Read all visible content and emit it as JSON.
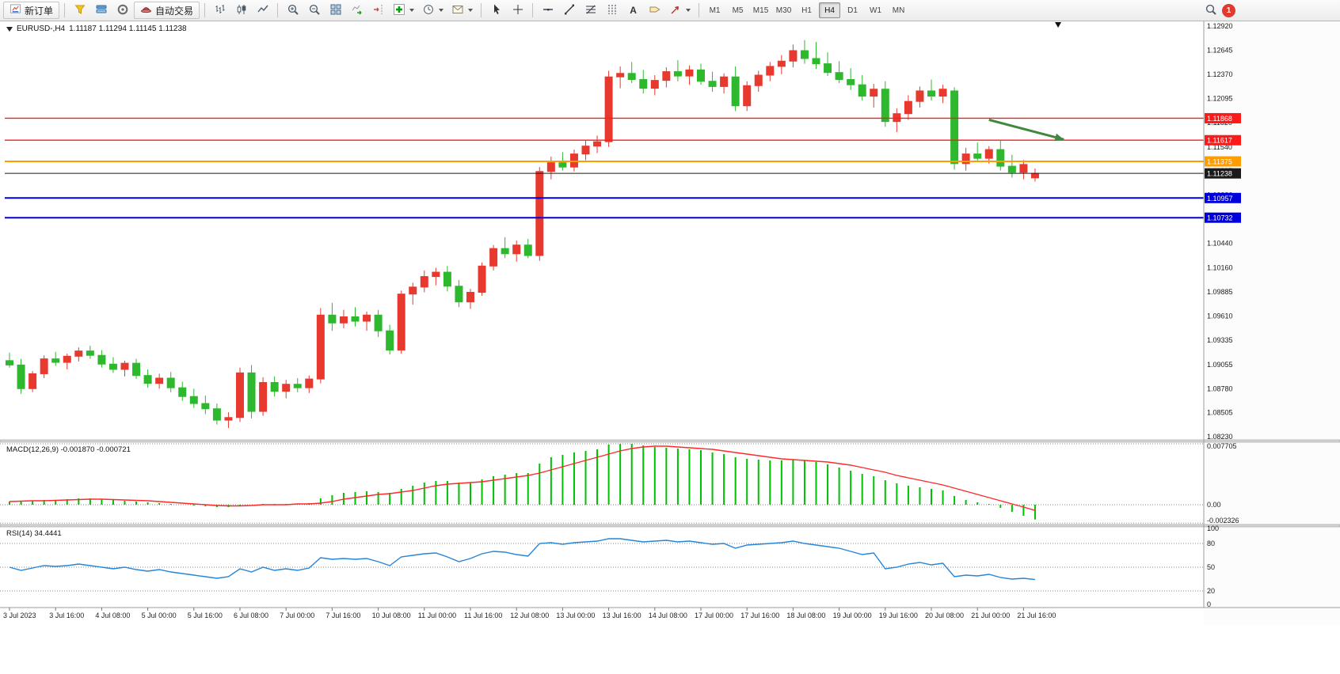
{
  "toolbar": {
    "new_order_label": "新订单",
    "auto_trading_label": "自动交易",
    "text_tool_glyph": "A",
    "timeframes": [
      "M1",
      "M5",
      "M15",
      "M30",
      "H1",
      "H4",
      "D1",
      "W1",
      "MN"
    ],
    "active_timeframe": "H4",
    "notification_count": "1"
  },
  "chart": {
    "symbol_label": "EURUSD-,H4",
    "ohlc_label": "1.11187 1.11294 1.11145 1.11238",
    "macd_label": "MACD(12,26,9) -0.001870 -0.000721",
    "rsi_label": "RSI(14) 34.4441"
  },
  "chart_data": {
    "type": "candlestick",
    "symbol": "EURUSD",
    "timeframe": "H4",
    "colors": {
      "bull": "#e8392f",
      "bear": "#2eb82e",
      "macd_hist": "#00c000",
      "macd_signal": "#ff2a2a",
      "rsi_line": "#2585d8",
      "axis_text": "#1a1a1a"
    },
    "candles": [
      [
        1.091,
        1.0919,
        1.0902,
        1.0905
      ],
      [
        1.0905,
        1.0912,
        1.0872,
        1.0878
      ],
      [
        1.0878,
        1.0898,
        1.0874,
        1.0895
      ],
      [
        1.0895,
        1.0916,
        1.089,
        1.0912
      ],
      [
        1.0912,
        1.092,
        1.0904,
        1.0908
      ],
      [
        1.0908,
        1.0918,
        1.09,
        1.0915
      ],
      [
        1.0915,
        1.0925,
        1.0909,
        1.0921
      ],
      [
        1.0921,
        1.0927,
        1.0912,
        1.0916
      ],
      [
        1.0916,
        1.0922,
        1.0902,
        1.0906
      ],
      [
        1.0906,
        1.0914,
        1.0896,
        1.09
      ],
      [
        1.09,
        1.091,
        1.0892,
        1.0907
      ],
      [
        1.0907,
        1.0912,
        1.0889,
        1.0893
      ],
      [
        1.0893,
        1.09,
        1.0879,
        1.0884
      ],
      [
        1.0884,
        1.0895,
        1.0878,
        1.089
      ],
      [
        1.089,
        1.0897,
        1.0874,
        1.0879
      ],
      [
        1.0879,
        1.0886,
        1.0864,
        1.0869
      ],
      [
        1.0869,
        1.0878,
        1.0856,
        1.0861
      ],
      [
        1.0861,
        1.087,
        1.0849,
        1.0855
      ],
      [
        1.0855,
        1.0861,
        1.0837,
        1.0842
      ],
      [
        1.0842,
        1.0851,
        1.0833,
        1.0845
      ],
      [
        1.0845,
        1.0902,
        1.084,
        1.0896
      ],
      [
        1.0896,
        1.0905,
        1.0844,
        1.0852
      ],
      [
        1.0852,
        1.0891,
        1.0847,
        1.0885
      ],
      [
        1.0885,
        1.0892,
        1.0869,
        1.0875
      ],
      [
        1.0875,
        1.0888,
        1.0867,
        1.0883
      ],
      [
        1.0883,
        1.089,
        1.0874,
        1.0879
      ],
      [
        1.0879,
        1.0893,
        1.0873,
        1.0889
      ],
      [
        1.0889,
        1.097,
        1.0884,
        1.0962
      ],
      [
        1.0962,
        1.0976,
        1.0944,
        1.0953
      ],
      [
        1.0953,
        1.0968,
        1.0947,
        1.096
      ],
      [
        1.096,
        1.0971,
        1.0949,
        1.0955
      ],
      [
        1.0955,
        1.0966,
        1.0944,
        1.0962
      ],
      [
        1.0962,
        1.0968,
        1.0937,
        1.0944
      ],
      [
        1.0944,
        1.0951,
        1.0917,
        1.0922
      ],
      [
        1.0922,
        1.099,
        1.0918,
        1.0986
      ],
      [
        1.0986,
        1.0999,
        1.0974,
        1.0994
      ],
      [
        1.0994,
        1.1013,
        1.0988,
        1.1006
      ],
      [
        1.1006,
        1.1016,
        1.0996,
        1.1011
      ],
      [
        1.1011,
        1.1018,
        1.0989,
        1.0995
      ],
      [
        1.0995,
        1.1002,
        1.0971,
        1.0977
      ],
      [
        1.0977,
        1.0992,
        1.0969,
        1.0988
      ],
      [
        1.0988,
        1.1022,
        1.0984,
        1.1018
      ],
      [
        1.1018,
        1.1042,
        1.1013,
        1.1038
      ],
      [
        1.1038,
        1.1051,
        1.1027,
        1.1032
      ],
      [
        1.1032,
        1.1047,
        1.1023,
        1.1042
      ],
      [
        1.1042,
        1.1049,
        1.1027,
        1.103
      ],
      [
        1.103,
        1.1131,
        1.1024,
        1.1126
      ],
      [
        1.1126,
        1.1143,
        1.1117,
        1.1136
      ],
      [
        1.1136,
        1.1148,
        1.1127,
        1.1131
      ],
      [
        1.1131,
        1.1151,
        1.1126,
        1.1146
      ],
      [
        1.1146,
        1.1161,
        1.1139,
        1.1155
      ],
      [
        1.1155,
        1.1167,
        1.1147,
        1.116
      ],
      [
        1.116,
        1.1241,
        1.1154,
        1.1234
      ],
      [
        1.1234,
        1.1246,
        1.1221,
        1.1238
      ],
      [
        1.1238,
        1.1251,
        1.1227,
        1.1231
      ],
      [
        1.1231,
        1.1242,
        1.1215,
        1.1221
      ],
      [
        1.1221,
        1.1236,
        1.1213,
        1.123
      ],
      [
        1.123,
        1.1245,
        1.1222,
        1.124
      ],
      [
        1.124,
        1.1253,
        1.1229,
        1.1235
      ],
      [
        1.1235,
        1.1247,
        1.1225,
        1.1242
      ],
      [
        1.1242,
        1.1249,
        1.1225,
        1.1229
      ],
      [
        1.1229,
        1.124,
        1.1217,
        1.1223
      ],
      [
        1.1223,
        1.1238,
        1.1215,
        1.1234
      ],
      [
        1.1234,
        1.1246,
        1.1195,
        1.1201
      ],
      [
        1.1201,
        1.1229,
        1.1195,
        1.1224
      ],
      [
        1.1224,
        1.1241,
        1.1217,
        1.1236
      ],
      [
        1.1236,
        1.1251,
        1.1229,
        1.1246
      ],
      [
        1.1246,
        1.1259,
        1.1237,
        1.1252
      ],
      [
        1.1252,
        1.1271,
        1.1245,
        1.1264
      ],
      [
        1.1264,
        1.1276,
        1.1249,
        1.1255
      ],
      [
        1.1255,
        1.1274,
        1.1243,
        1.1249
      ],
      [
        1.1249,
        1.1262,
        1.1235,
        1.1239
      ],
      [
        1.1239,
        1.1252,
        1.1227,
        1.1231
      ],
      [
        1.1231,
        1.1244,
        1.1219,
        1.1225
      ],
      [
        1.1225,
        1.1236,
        1.1207,
        1.1212
      ],
      [
        1.1212,
        1.1226,
        1.1199,
        1.122
      ],
      [
        1.122,
        1.1229,
        1.1177,
        1.1183
      ],
      [
        1.1183,
        1.1198,
        1.1171,
        1.1192
      ],
      [
        1.1192,
        1.1213,
        1.1185,
        1.1206
      ],
      [
        1.1206,
        1.1223,
        1.1199,
        1.1218
      ],
      [
        1.1218,
        1.1231,
        1.1207,
        1.1212
      ],
      [
        1.1212,
        1.1225,
        1.1204,
        1.122
      ],
      [
        1.1218,
        1.1222,
        1.1128,
        1.1135
      ],
      [
        1.1135,
        1.1153,
        1.1127,
        1.1146
      ],
      [
        1.1146,
        1.1159,
        1.1137,
        1.1141
      ],
      [
        1.1141,
        1.1155,
        1.1135,
        1.1151
      ],
      [
        1.1151,
        1.1161,
        1.1127,
        1.1132
      ],
      [
        1.1132,
        1.1145,
        1.1119,
        1.1125
      ],
      [
        1.1125,
        1.1139,
        1.1117,
        1.1134
      ],
      [
        1.11187,
        1.11294,
        1.11145,
        1.11238
      ]
    ],
    "time_labels": [
      "3 Jul 2023",
      "3 Jul 16:00",
      "4 Jul 08:00",
      "5 Jul 00:00",
      "5 Jul 16:00",
      "6 Jul 08:00",
      "7 Jul 00:00",
      "7 Jul 16:00",
      "10 Jul 08:00",
      "11 Jul 00:00",
      "11 Jul 16:00",
      "12 Jul 08:00",
      "13 Jul 00:00",
      "13 Jul 16:00",
      "14 Jul 08:00",
      "17 Jul 00:00",
      "17 Jul 16:00",
      "18 Jul 08:00",
      "19 Jul 00:00",
      "19 Jul 16:00",
      "20 Jul 08:00",
      "21 Jul 00:00",
      "21 Jul 16:00"
    ],
    "label_every": 4,
    "price_axis_ticks": [
      "1.12920",
      "1.12645",
      "1.12370",
      "1.12095",
      "1.11820",
      "1.11540",
      "1.11265",
      "1.10990",
      "1.10715",
      "1.10440",
      "1.10160",
      "1.09885",
      "1.09610",
      "1.09335",
      "1.09055",
      "1.08780",
      "1.08505",
      "1.08230"
    ],
    "hlines": [
      {
        "price": 1.11868,
        "color": "#ff1a1a",
        "width": 1.4,
        "label": "1.11868"
      },
      {
        "price": 1.11617,
        "color": "#ff1a1a",
        "width": 1.4,
        "label": "1.11617"
      },
      {
        "price": 1.11375,
        "color": "#ff9c00",
        "width": 2,
        "label": "1.11375"
      },
      {
        "price": 1.11238,
        "color": "#1a1a1a",
        "width": 1,
        "label": "1.11238"
      },
      {
        "price": 1.10957,
        "color": "#0000dd",
        "width": 2,
        "label": "1.10957"
      },
      {
        "price": 1.10732,
        "color": "#0000dd",
        "width": 2,
        "label": "1.10732"
      }
    ],
    "arrow_annotation": {
      "i1": 85,
      "p1": 1.11868,
      "i2": 91.5,
      "p2": 1.11625,
      "color": "#41883e"
    },
    "shift_marker_index": 91,
    "macd": {
      "label": "MACD(12,26,9)",
      "value": -0.00187,
      "signal_value": -0.000721,
      "axis_labels": [
        "0.007705",
        "0.00",
        "-0.002326"
      ],
      "histogram": [
        0.0004,
        0.0005,
        0.0005,
        0.0006,
        0.0006,
        0.0007,
        0.0008,
        0.0008,
        0.0007,
        0.0006,
        0.0005,
        0.0004,
        0.0003,
        0.0002,
        0.0001,
        0.0,
        -0.0001,
        -0.0002,
        -0.0003,
        -0.0003,
        -0.0001,
        0.0,
        0.0001,
        0.0001,
        0.0001,
        0.0001,
        0.0002,
        0.0008,
        0.0012,
        0.0015,
        0.0016,
        0.0017,
        0.0016,
        0.0015,
        0.002,
        0.0024,
        0.0028,
        0.003,
        0.003,
        0.0028,
        0.0028,
        0.0032,
        0.0036,
        0.0038,
        0.004,
        0.004,
        0.0052,
        0.006,
        0.0063,
        0.0066,
        0.0068,
        0.007,
        0.0076,
        0.0077,
        0.0077,
        0.0075,
        0.0073,
        0.0072,
        0.0071,
        0.007,
        0.0069,
        0.0066,
        0.0064,
        0.006,
        0.0058,
        0.0057,
        0.0056,
        0.0056,
        0.0057,
        0.0056,
        0.0054,
        0.0051,
        0.0047,
        0.0043,
        0.0039,
        0.0036,
        0.0031,
        0.0027,
        0.0024,
        0.0022,
        0.002,
        0.0018,
        0.0011,
        0.0006,
        0.0003,
        0.0001,
        -0.0004,
        -0.0009,
        -0.0014,
        -0.00187
      ],
      "signal": [
        0.0004,
        0.00045,
        0.0005,
        0.0005,
        0.00055,
        0.0006,
        0.00065,
        0.0007,
        0.0007,
        0.00065,
        0.0006,
        0.00055,
        0.0005,
        0.0004,
        0.0003,
        0.0002,
        0.0001,
        0.0,
        -0.0001,
        -0.00015,
        -0.00015,
        -0.0001,
        0.0,
        0.0,
        0.0,
        0.0001,
        0.0001,
        0.0002,
        0.0004,
        0.0007,
        0.0009,
        0.0011,
        0.0013,
        0.0014,
        0.0016,
        0.0018,
        0.0021,
        0.0024,
        0.0026,
        0.0027,
        0.0028,
        0.0029,
        0.0031,
        0.0033,
        0.0035,
        0.0037,
        0.004,
        0.0044,
        0.0048,
        0.0052,
        0.0056,
        0.006,
        0.0064,
        0.0068,
        0.0071,
        0.0073,
        0.0074,
        0.0074,
        0.0073,
        0.0072,
        0.0071,
        0.007,
        0.0068,
        0.0066,
        0.0064,
        0.0062,
        0.006,
        0.0058,
        0.0057,
        0.0056,
        0.0055,
        0.0054,
        0.0052,
        0.005,
        0.0047,
        0.0044,
        0.0041,
        0.0037,
        0.0034,
        0.0031,
        0.0028,
        0.0025,
        0.0021,
        0.0017,
        0.0013,
        0.0009,
        0.0005,
        0.0001,
        -0.0003,
        -0.000721
      ]
    },
    "rsi": {
      "label": "RSI(14)",
      "value": 34.4441,
      "levels": [
        80,
        50,
        20
      ],
      "axis_labels": [
        "100",
        "80",
        "50",
        "20",
        "0"
      ],
      "values": [
        50,
        46,
        49,
        52,
        51,
        52,
        54,
        52,
        50,
        48,
        50,
        47,
        45,
        47,
        44,
        42,
        40,
        38,
        36,
        38,
        48,
        44,
        50,
        46,
        48,
        46,
        49,
        62,
        60,
        61,
        60,
        61,
        57,
        52,
        63,
        65,
        67,
        68,
        63,
        57,
        61,
        67,
        70,
        69,
        66,
        64,
        80,
        81,
        79,
        81,
        82,
        83,
        86,
        86,
        84,
        82,
        83,
        84,
        82,
        83,
        81,
        79,
        80,
        74,
        78,
        79,
        80,
        81,
        83,
        80,
        78,
        76,
        74,
        70,
        66,
        68,
        48,
        50,
        54,
        56,
        53,
        55,
        38,
        40,
        39,
        41,
        37,
        35,
        36,
        34.44
      ]
    }
  }
}
